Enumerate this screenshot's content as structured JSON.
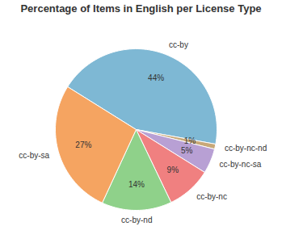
{
  "chart_data": {
    "type": "pie",
    "title": "Percentage of Items in English per License Type",
    "categories": [
      "cc-by",
      "cc-by-nc-nd",
      "cc-by-nc-sa",
      "cc-by-nc",
      "cc-by-nd",
      "cc-by-sa"
    ],
    "values": [
      44,
      1,
      5,
      9,
      14,
      27
    ],
    "value_labels": [
      "44%",
      "1%",
      "5%",
      "9%",
      "14%",
      "27%"
    ],
    "colors": [
      "#7eb8d4",
      "#c8a878",
      "#b8a0d4",
      "#f08080",
      "#8fd18a",
      "#f5a461"
    ],
    "data_labels": true
  }
}
